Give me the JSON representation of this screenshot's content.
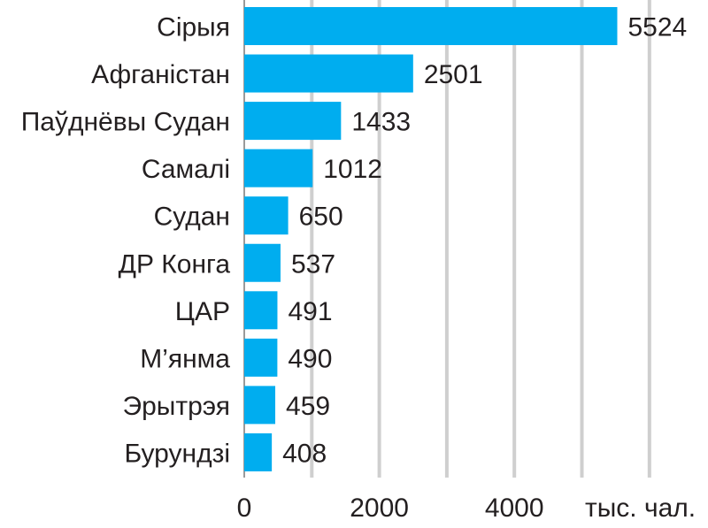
{
  "chart_data": {
    "type": "bar",
    "orientation": "horizontal",
    "categories": [
      "Сірыя",
      "Афганістан",
      "Паўднёвы Судан",
      "Самалі",
      "Судан",
      "ДР Конга",
      "ЦАР",
      "М’янма",
      "Эрытрэя",
      "Бурундзі"
    ],
    "values": [
      5524,
      2501,
      1433,
      1012,
      650,
      537,
      491,
      490,
      459,
      408
    ],
    "value_labels": [
      "5524",
      "2501",
      "1433",
      "1012",
      "650",
      "537",
      "491",
      "490",
      "459",
      "408"
    ],
    "xlim": [
      0,
      6000
    ],
    "grid_step": 1000,
    "x_ticks": [
      {
        "value": 0,
        "label": "0"
      },
      {
        "value": 2000,
        "label": "2000"
      },
      {
        "value": 4000,
        "label": "4000"
      }
    ],
    "unit_label": "тыс. чал.",
    "grid": true,
    "bar_color": "#00adef"
  }
}
